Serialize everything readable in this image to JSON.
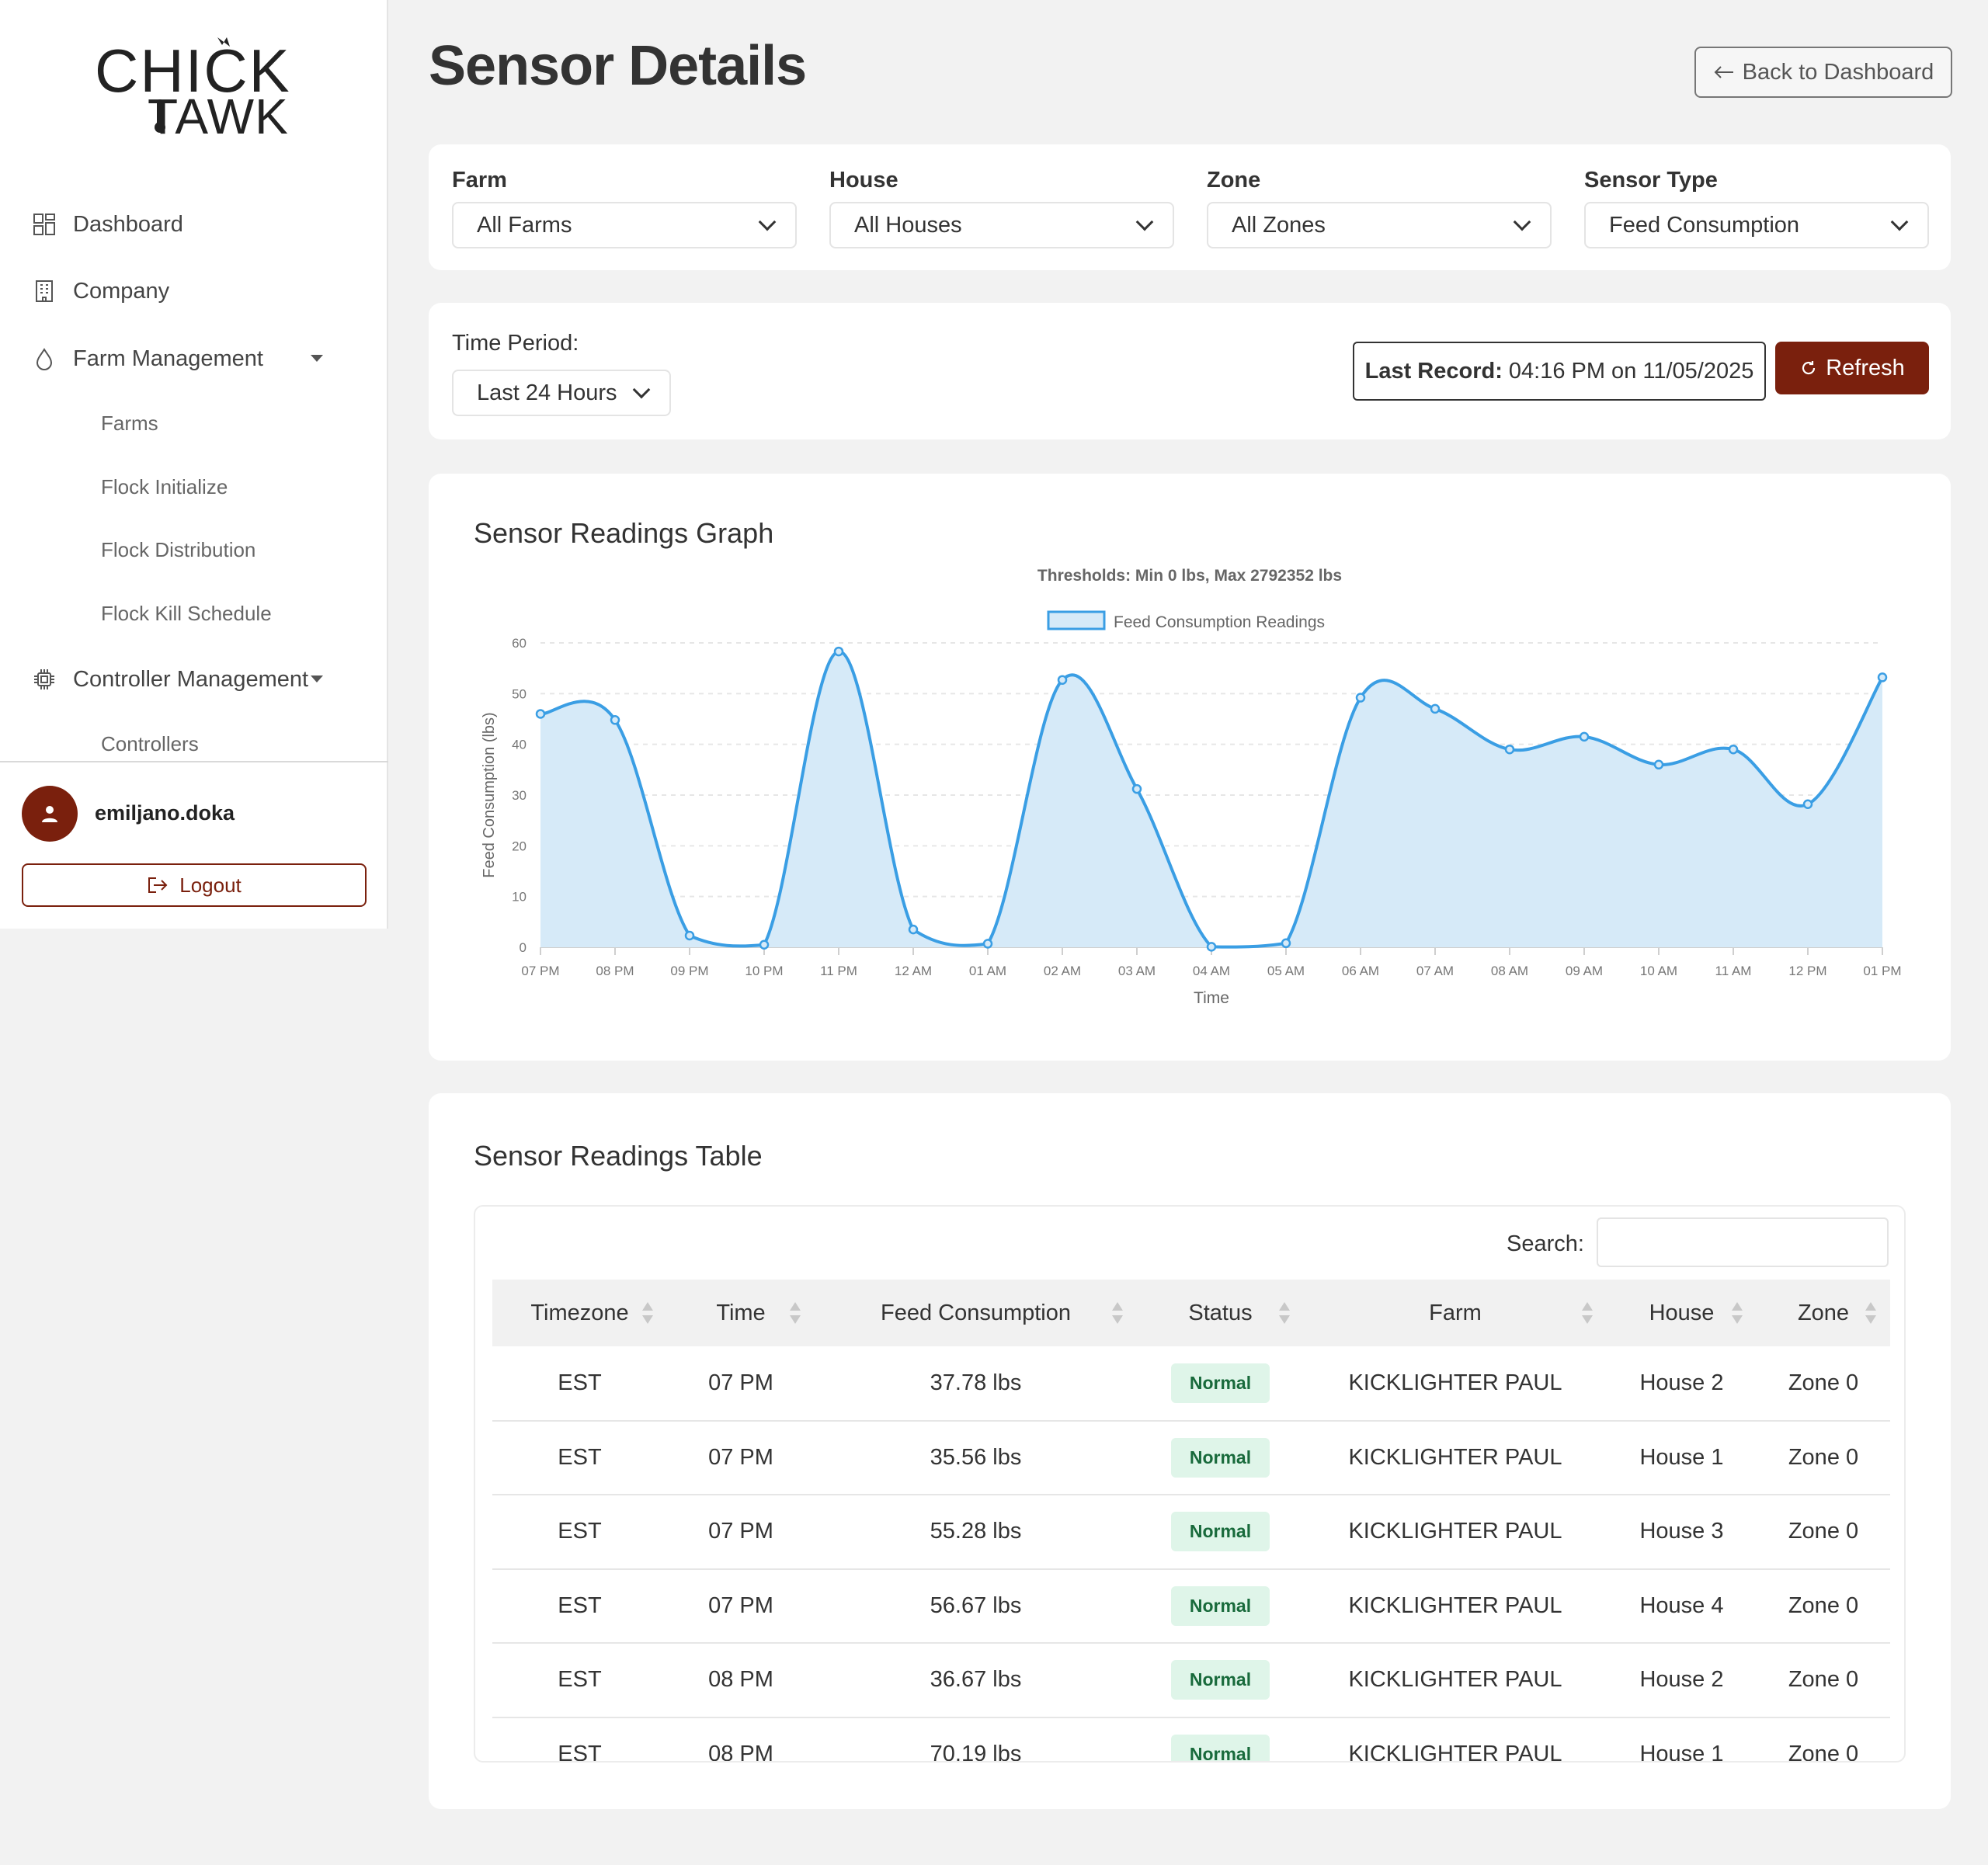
{
  "app": {
    "logo_line1": "CHICK",
    "logo_line2": "TAWK"
  },
  "sidebar": {
    "items": [
      {
        "label": "Dashboard",
        "icon": "grid-icon"
      },
      {
        "label": "Company",
        "icon": "building-icon"
      },
      {
        "label": "Farm Management",
        "icon": "drop-icon"
      },
      {
        "label": "Controller Management",
        "icon": "chip-icon"
      }
    ],
    "farm_sub": [
      "Farms",
      "Flock Initialize",
      "Flock Distribution",
      "Flock Kill Schedule"
    ],
    "controller_sub": [
      "Controllers"
    ],
    "user": {
      "name": "emiljano.doka"
    },
    "logout_label": "Logout"
  },
  "header": {
    "title": "Sensor Details",
    "back_label": "Back to Dashboard"
  },
  "filters": [
    {
      "label": "Farm",
      "value": "All Farms"
    },
    {
      "label": "House",
      "value": "All Houses"
    },
    {
      "label": "Zone",
      "value": "All Zones"
    },
    {
      "label": "Sensor Type",
      "value": "Feed Consumption"
    }
  ],
  "period": {
    "label": "Time Period:",
    "value": "Last 24 Hours",
    "last_record_label": "Last Record:",
    "last_record_value": "04:16 PM on 11/05/2025",
    "refresh_label": "Refresh"
  },
  "graph_card": {
    "title": "Sensor Readings Graph"
  },
  "chart_data": {
    "type": "area",
    "title": "Thresholds: Min 0 lbs, Max 2792352 lbs",
    "xlabel": "Time",
    "ylabel": "Feed Consumption (lbs)",
    "ylim": [
      0,
      60
    ],
    "yticks": [
      0,
      10,
      20,
      30,
      40,
      50,
      60
    ],
    "grid": true,
    "legend_position": "top-center",
    "categories": [
      "07 PM",
      "08 PM",
      "09 PM",
      "10 PM",
      "11 PM",
      "12 AM",
      "01 AM",
      "02 AM",
      "03 AM",
      "04 AM",
      "05 AM",
      "06 AM",
      "07 AM",
      "08 AM",
      "09 AM",
      "10 AM",
      "11 AM",
      "12 PM",
      "01 PM"
    ],
    "series": [
      {
        "name": "Feed Consumption Readings",
        "color": "#3a9ee4",
        "fill": "#d6eaf8",
        "values": [
          46,
          44.8,
          2.3,
          0.5,
          58.3,
          3.5,
          0.7,
          52.7,
          31.2,
          0.1,
          0.8,
          49.2,
          47,
          39,
          41.5,
          36,
          39,
          28.2,
          53.2
        ]
      }
    ]
  },
  "table_card": {
    "title": "Sensor Readings Table",
    "search_label": "Search:",
    "columns": [
      "Timezone",
      "Time",
      "Feed Consumption",
      "Status",
      "Farm",
      "House",
      "Zone"
    ],
    "rows": [
      [
        "EST",
        "07 PM",
        "37.78 lbs",
        "Normal",
        "KICKLIGHTER PAUL",
        "House 2",
        "Zone 0"
      ],
      [
        "EST",
        "07 PM",
        "35.56 lbs",
        "Normal",
        "KICKLIGHTER PAUL",
        "House 1",
        "Zone 0"
      ],
      [
        "EST",
        "07 PM",
        "55.28 lbs",
        "Normal",
        "KICKLIGHTER PAUL",
        "House 3",
        "Zone 0"
      ],
      [
        "EST",
        "07 PM",
        "56.67 lbs",
        "Normal",
        "KICKLIGHTER PAUL",
        "House 4",
        "Zone 0"
      ],
      [
        "EST",
        "08 PM",
        "36.67 lbs",
        "Normal",
        "KICKLIGHTER PAUL",
        "House 2",
        "Zone 0"
      ],
      [
        "EST",
        "08 PM",
        "70.19 lbs",
        "Normal",
        "KICKLIGHTER PAUL",
        "House 1",
        "Zone 0"
      ]
    ]
  },
  "colors": {
    "brand": "#7a200d",
    "chart_line": "#3a9ee4",
    "chart_fill": "#d6eaf8",
    "badge_bg": "#dff5e9",
    "badge_text": "#186a3b"
  }
}
